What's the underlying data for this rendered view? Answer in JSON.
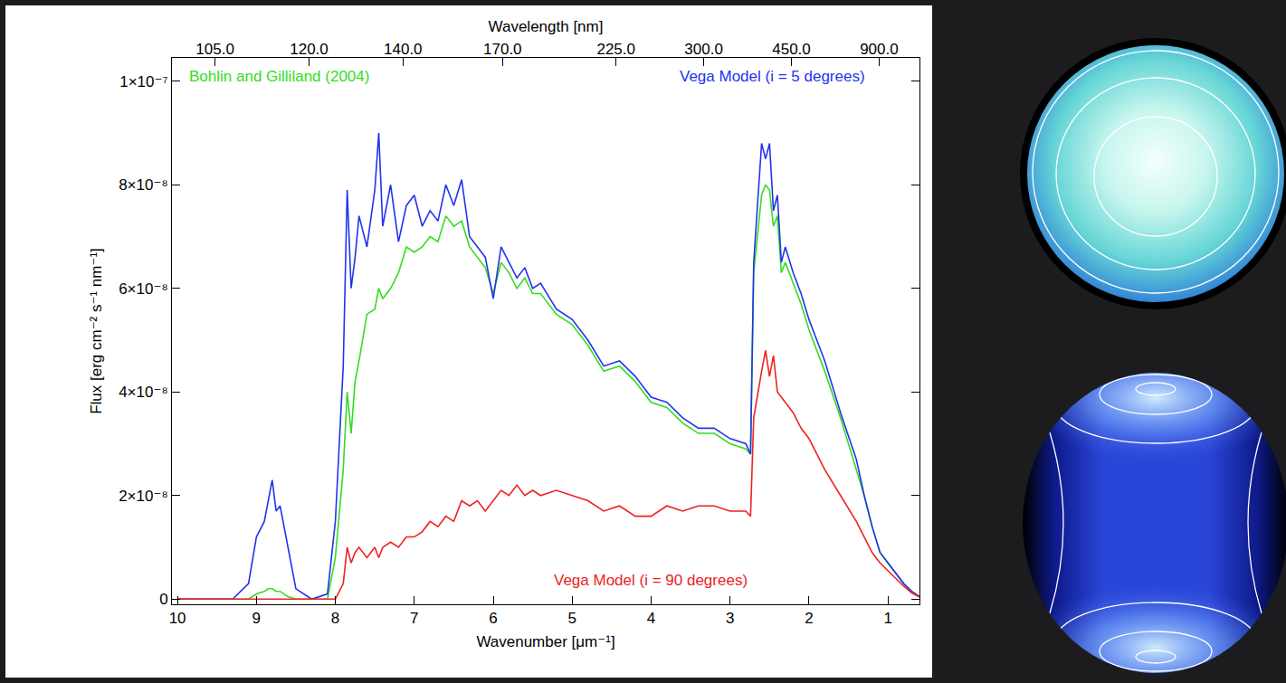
{
  "chart_data": {
    "type": "line",
    "x_label": "Wavenumber [μm⁻¹]",
    "y_label": "Flux [erg cm⁻² s⁻¹ nm⁻¹]",
    "x2_label": "Wavelength [nm]",
    "xlim": [
      10.07,
      0.6
    ],
    "xticks": [
      10,
      9,
      8,
      7,
      6,
      5,
      4,
      3,
      2,
      1
    ],
    "x2lim": [
      10.07,
      0.6
    ],
    "x2ticks": [
      {
        "value": 9.524,
        "label": "105.0"
      },
      {
        "value": 8.333,
        "label": "120.0"
      },
      {
        "value": 7.143,
        "label": "140.0"
      },
      {
        "value": 5.882,
        "label": "170.0"
      },
      {
        "value": 4.444,
        "label": "225.0"
      },
      {
        "value": 3.333,
        "label": "300.0"
      },
      {
        "value": 2.222,
        "label": "450.0"
      },
      {
        "value": 1.111,
        "label": "900.0"
      }
    ],
    "ylim": [
      -1e-09,
      1.045e-07
    ],
    "yticks": [
      0,
      {
        "value": 2e-08,
        "label": "2×10⁻⁸"
      },
      {
        "value": 4e-08,
        "label": "4×10⁻⁸"
      },
      {
        "value": 6e-08,
        "label": "6×10⁻⁸"
      },
      {
        "value": 8e-08,
        "label": "8×10⁻⁸"
      },
      {
        "value": 1e-07,
        "label": "1×10⁻⁷"
      }
    ],
    "grid": false,
    "x": [
      10.0,
      9.3,
      9.1,
      9.0,
      8.9,
      8.85,
      8.8,
      8.75,
      8.7,
      8.6,
      8.5,
      8.3,
      8.1,
      8.0,
      7.9,
      7.85,
      7.8,
      7.75,
      7.7,
      7.6,
      7.5,
      7.45,
      7.4,
      7.3,
      7.2,
      7.1,
      7.0,
      6.9,
      6.8,
      6.7,
      6.6,
      6.5,
      6.4,
      6.3,
      6.2,
      6.1,
      6.0,
      5.9,
      5.8,
      5.7,
      5.6,
      5.5,
      5.4,
      5.2,
      5.0,
      4.8,
      4.6,
      4.4,
      4.2,
      4.0,
      3.8,
      3.6,
      3.4,
      3.2,
      3.0,
      2.8,
      2.74,
      2.7,
      2.6,
      2.55,
      2.5,
      2.45,
      2.4,
      2.35,
      2.3,
      2.2,
      2.1,
      2.0,
      1.9,
      1.8,
      1.6,
      1.4,
      1.3,
      1.2,
      1.1,
      1.0,
      0.9,
      0.8,
      0.7,
      0.6
    ],
    "series": [
      {
        "name": "Bohlin and Gilliland (2004)",
        "color": "#33dd22",
        "values": [
          0,
          0,
          0,
          1e-09,
          1.5e-09,
          2e-09,
          2e-09,
          1.5e-09,
          1.5e-09,
          5e-10,
          0,
          0,
          0,
          8e-09,
          2.5e-08,
          4e-08,
          3.2e-08,
          4.2e-08,
          4.6e-08,
          5.5e-08,
          5.6e-08,
          6e-08,
          5.8e-08,
          6e-08,
          6.3e-08,
          6.8e-08,
          6.7e-08,
          6.8e-08,
          7e-08,
          6.9e-08,
          7.4e-08,
          7.2e-08,
          7.3e-08,
          6.8e-08,
          6.6e-08,
          6.4e-08,
          5.9e-08,
          6.5e-08,
          6.3e-08,
          6e-08,
          6.2e-08,
          5.9e-08,
          5.9e-08,
          5.5e-08,
          5.3e-08,
          4.9e-08,
          4.4e-08,
          4.5e-08,
          4.2e-08,
          3.8e-08,
          3.7e-08,
          3.4e-08,
          3.2e-08,
          3.2e-08,
          3e-08,
          2.9e-08,
          2.8e-08,
          6.3e-08,
          7.8e-08,
          8e-08,
          7.9e-08,
          7.2e-08,
          7.4e-08,
          6.3e-08,
          6.5e-08,
          6.1e-08,
          5.7e-08,
          5.2e-08,
          4.8e-08,
          4.4e-08,
          3.5e-08,
          2.5e-08,
          2e-08,
          1.4e-08,
          9e-09,
          7e-09,
          5e-09,
          3e-09,
          1.5e-09,
          5e-10
        ]
      },
      {
        "name": "Vega Model (i = 5 degrees)",
        "color": "#2233ee",
        "values": [
          0,
          0,
          3e-09,
          1.2e-08,
          1.5e-08,
          1.9e-08,
          2.3e-08,
          1.7e-08,
          1.8e-08,
          1e-08,
          2e-09,
          0,
          1e-09,
          1.5e-08,
          4.5e-08,
          7.9e-08,
          6e-08,
          6.6e-08,
          7.4e-08,
          6.8e-08,
          7.9e-08,
          9e-08,
          7.2e-08,
          8e-08,
          6.9e-08,
          7.6e-08,
          7.8e-08,
          7.2e-08,
          7.5e-08,
          7.3e-08,
          8e-08,
          7.6e-08,
          8.1e-08,
          7e-08,
          6.8e-08,
          6.6e-08,
          5.8e-08,
          6.8e-08,
          6.5e-08,
          6.2e-08,
          6.4e-08,
          6e-08,
          6.1e-08,
          5.6e-08,
          5.4e-08,
          5e-08,
          4.5e-08,
          4.6e-08,
          4.3e-08,
          3.9e-08,
          3.8e-08,
          3.5e-08,
          3.3e-08,
          3.3e-08,
          3.1e-08,
          3e-08,
          2.8e-08,
          6.5e-08,
          8.8e-08,
          8.5e-08,
          8.8e-08,
          7.5e-08,
          7.8e-08,
          6.5e-08,
          6.8e-08,
          6.3e-08,
          5.9e-08,
          5.4e-08,
          5e-08,
          4.6e-08,
          3.6e-08,
          2.7e-08,
          2e-08,
          1.4e-08,
          9e-09,
          7e-09,
          5e-09,
          3e-09,
          1.5e-09,
          5e-10
        ]
      },
      {
        "name": "Vega Model (i = 90 degrees)",
        "color": "#ee2222",
        "values": [
          0,
          0,
          0,
          0,
          0,
          0,
          0,
          0,
          0,
          0,
          0,
          0,
          0,
          0,
          3e-09,
          1e-08,
          7e-09,
          9e-09,
          1e-08,
          8e-09,
          1e-08,
          8e-09,
          1e-08,
          1.1e-08,
          1e-08,
          1.2e-08,
          1.2e-08,
          1.3e-08,
          1.5e-08,
          1.4e-08,
          1.6e-08,
          1.5e-08,
          1.9e-08,
          1.8e-08,
          1.9e-08,
          1.7e-08,
          1.9e-08,
          2.1e-08,
          2e-08,
          2.2e-08,
          2e-08,
          2.1e-08,
          2e-08,
          2.1e-08,
          2e-08,
          1.9e-08,
          1.7e-08,
          1.8e-08,
          1.6e-08,
          1.6e-08,
          1.8e-08,
          1.7e-08,
          1.8e-08,
          1.8e-08,
          1.7e-08,
          1.7e-08,
          1.6e-08,
          3.5e-08,
          4.4e-08,
          4.8e-08,
          4.3e-08,
          4.7e-08,
          4e-08,
          3.9e-08,
          3.8e-08,
          3.6e-08,
          3.3e-08,
          3.1e-08,
          2.8e-08,
          2.5e-08,
          2e-08,
          1.5e-08,
          1.2e-08,
          9e-09,
          7e-09,
          5.5e-09,
          4e-09,
          2.5e-09,
          1.2e-09,
          4e-10
        ]
      }
    ]
  }
}
